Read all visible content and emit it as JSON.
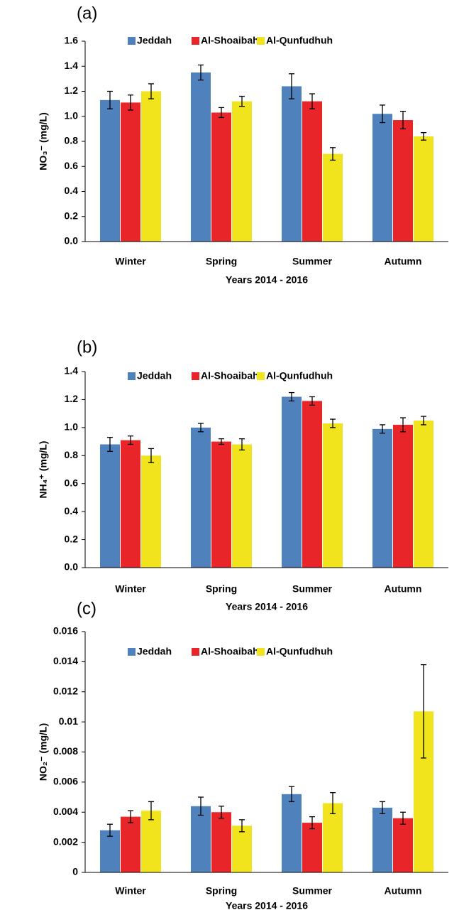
{
  "chart_data": [
    {
      "type": "bar",
      "label": "(a)",
      "y_label": "NO₃⁻ (mg/L)",
      "x_label": "Years 2014 - 2016",
      "categories": [
        "Winter",
        "Spring",
        "Summer",
        "Autumn"
      ],
      "series": [
        {
          "name": "Jeddah",
          "color": "#4f81bd",
          "values": [
            1.13,
            1.35,
            1.24,
            1.02
          ],
          "errors": [
            0.07,
            0.06,
            0.1,
            0.07
          ]
        },
        {
          "name": "Al-Shoaibah",
          "color": "#e8262a",
          "values": [
            1.11,
            1.03,
            1.12,
            0.97
          ],
          "errors": [
            0.06,
            0.04,
            0.06,
            0.07
          ]
        },
        {
          "name": "Al-Qunfudhuh",
          "color": "#f2e41c",
          "values": [
            1.2,
            1.12,
            0.7,
            0.84
          ],
          "errors": [
            0.06,
            0.04,
            0.05,
            0.03
          ]
        }
      ],
      "ylim": [
        0,
        1.6
      ],
      "yticks": [
        {
          "value": 0,
          "label": "0.0"
        },
        0.2,
        0.4,
        0.6,
        0.8,
        {
          "value": 1,
          "label": "1.0"
        },
        1.2,
        1.4,
        1.6
      ],
      "grid": false,
      "legend": "top"
    },
    {
      "type": "bar",
      "label": "(b)",
      "y_label": "NH₄⁺ (mg/L)",
      "x_label": "Years 2014 - 2016",
      "categories": [
        "Winter",
        "Spring",
        "Summer",
        "Autumn"
      ],
      "series": [
        {
          "name": "Jeddah",
          "color": "#4f81bd",
          "values": [
            0.88,
            1.0,
            1.22,
            0.99
          ],
          "errors": [
            0.05,
            0.03,
            0.03,
            0.03
          ]
        },
        {
          "name": "Al-Shoaibah",
          "color": "#e8262a",
          "values": [
            0.91,
            0.9,
            1.19,
            1.02
          ],
          "errors": [
            0.03,
            0.02,
            0.03,
            0.05
          ]
        },
        {
          "name": "Al-Qunfudhuh",
          "color": "#f2e41c",
          "values": [
            0.8,
            0.88,
            1.03,
            1.05
          ],
          "errors": [
            0.05,
            0.04,
            0.03,
            0.03
          ]
        }
      ],
      "ylim": [
        0,
        1.4
      ],
      "yticks": [
        {
          "value": 0,
          "label": "0.0"
        },
        0.2,
        0.4,
        0.6,
        0.8,
        {
          "value": 1,
          "label": "1.0"
        },
        1.2,
        1.4
      ],
      "grid": false,
      "legend": "top"
    },
    {
      "type": "bar",
      "label": "(c)",
      "y_label": "NO₂⁻ (mg/L)",
      "x_label": "Years 2014 - 2016",
      "categories": [
        "Winter",
        "Spring",
        "Summer",
        "Autumn"
      ],
      "series": [
        {
          "name": "Jeddah",
          "color": "#4f81bd",
          "values": [
            0.0028,
            0.0044,
            0.0052,
            0.0043
          ],
          "errors": [
            0.0004,
            0.0006,
            0.0005,
            0.0004
          ]
        },
        {
          "name": "Al-Shoaibah",
          "color": "#e8262a",
          "values": [
            0.0037,
            0.004,
            0.0033,
            0.0036
          ],
          "errors": [
            0.0004,
            0.0004,
            0.0004,
            0.0004
          ]
        },
        {
          "name": "Al-Qunfudhuh",
          "color": "#f2e41c",
          "values": [
            0.0041,
            0.0031,
            0.0046,
            0.0107
          ],
          "errors": [
            0.0006,
            0.0004,
            0.0007,
            0.0031
          ]
        }
      ],
      "ylim": [
        0,
        0.016
      ],
      "yticks": [
        0,
        0.002,
        0.004,
        0.006,
        0.008,
        0.01,
        0.012,
        0.014,
        0.016
      ],
      "grid": false,
      "legend": "top"
    }
  ]
}
